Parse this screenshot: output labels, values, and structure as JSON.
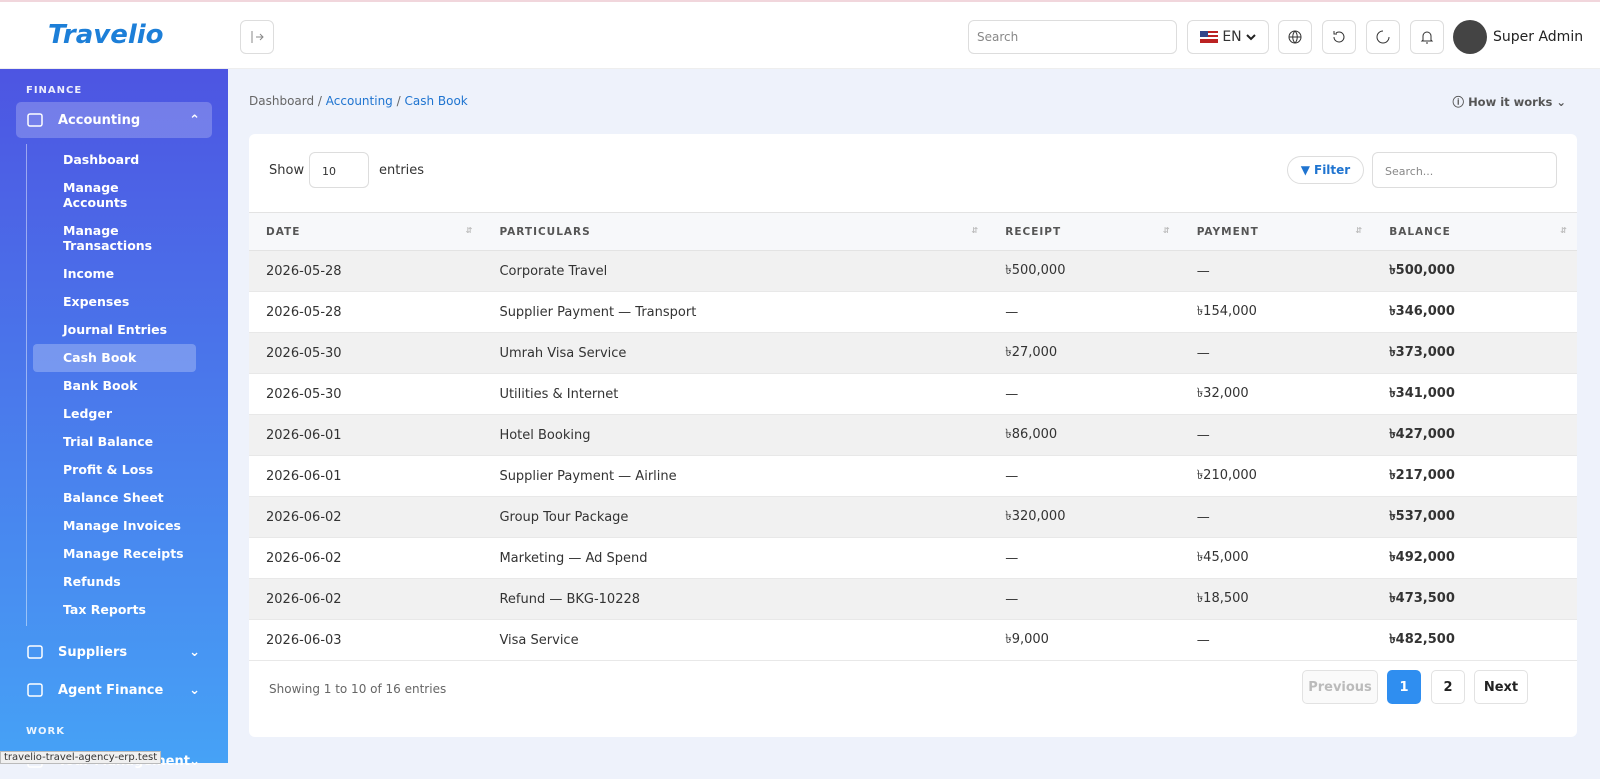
{
  "header": {
    "logo": "Travelio",
    "search_placeholder": "Search",
    "language": "EN",
    "user": "Super Admin"
  },
  "sidebar": {
    "sections": [
      {
        "title": "FINANCE",
        "items": [
          {
            "label": "Accounting",
            "children": [
              "Dashboard",
              "Manage Accounts",
              "Manage Transactions",
              "Income",
              "Expenses",
              "Journal Entries",
              "Cash Book",
              "Bank Book",
              "Ledger",
              "Trial Balance",
              "Profit & Loss",
              "Balance Sheet",
              "Manage Invoices",
              "Manage Receipts",
              "Refunds",
              "Tax Reports"
            ]
          },
          {
            "label": "Suppliers"
          },
          {
            "label": "Agent Finance"
          }
        ]
      },
      {
        "title": "WORK",
        "items": [
          {
            "label": "Tour Management"
          }
        ]
      }
    ]
  },
  "status_url": "travelio-travel-agency-erp.test",
  "breadcrumb": [
    "Dashboard",
    "Accounting",
    "Cash Book"
  ],
  "how_it_works": "How it works",
  "table": {
    "show_label": "Show",
    "entries_value": "10",
    "entries_label": "entries",
    "filter": "Filter",
    "search_placeholder": "Search...",
    "columns": [
      "DATE",
      "PARTICULARS",
      "RECEIPT",
      "PAYMENT",
      "BALANCE"
    ],
    "rows": [
      [
        "2026-05-28",
        "Corporate Travel",
        "৳500,000",
        "—",
        "৳500,000"
      ],
      [
        "2026-05-28",
        "Supplier Payment — Transport",
        "—",
        "৳154,000",
        "৳346,000"
      ],
      [
        "2026-05-30",
        "Umrah Visa Service",
        "৳27,000",
        "—",
        "৳373,000"
      ],
      [
        "2026-05-30",
        "Utilities & Internet",
        "—",
        "৳32,000",
        "৳341,000"
      ],
      [
        "2026-06-01",
        "Hotel Booking",
        "৳86,000",
        "—",
        "৳427,000"
      ],
      [
        "2026-06-01",
        "Supplier Payment — Airline",
        "—",
        "৳210,000",
        "৳217,000"
      ],
      [
        "2026-06-02",
        "Group Tour Package",
        "৳320,000",
        "—",
        "৳537,000"
      ],
      [
        "2026-06-02",
        "Marketing — Ad Spend",
        "—",
        "৳45,000",
        "৳492,000"
      ],
      [
        "2026-06-02",
        "Refund — BKG-10228",
        "—",
        "৳18,500",
        "৳473,500"
      ],
      [
        "2026-06-03",
        "Visa Service",
        "৳9,000",
        "—",
        "৳482,500"
      ]
    ],
    "footer": "Showing 1 to 10 of 16 entries",
    "pagination": [
      "Previous",
      "1",
      "2",
      "Next"
    ]
  }
}
